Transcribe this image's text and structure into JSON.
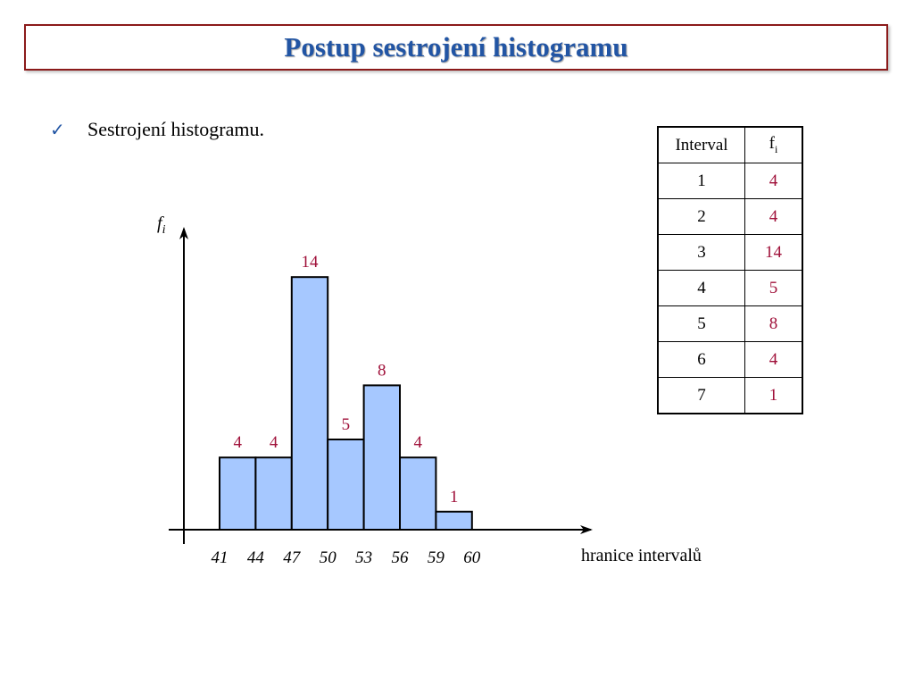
{
  "slide": {
    "title": "Postup sestrojení histogramu",
    "bullet": "Sestrojení histogramu."
  },
  "table": {
    "header_interval": "Interval",
    "header_f": "f",
    "header_f_sub": "i",
    "rows": [
      {
        "interval": "1",
        "f": "4"
      },
      {
        "interval": "2",
        "f": "4"
      },
      {
        "interval": "3",
        "f": "14"
      },
      {
        "interval": "4",
        "f": "5"
      },
      {
        "interval": "5",
        "f": "8"
      },
      {
        "interval": "6",
        "f": "4"
      },
      {
        "interval": "7",
        "f": "1"
      }
    ]
  },
  "colors": {
    "title": "#2255a4",
    "title_border": "#8b1a1a",
    "bar_fill": "#a6c8ff",
    "value_label": "#a0113a"
  },
  "chart_data": {
    "type": "bar",
    "ylabel": "f",
    "ylabel_sub": "i",
    "xlabel": "hranice intervalů",
    "bin_edges": [
      41,
      44,
      47,
      50,
      53,
      56,
      59,
      60
    ],
    "tick_labels": [
      "41",
      "44",
      "47",
      "50",
      "53",
      "56",
      "59",
      "60"
    ],
    "values": [
      4,
      4,
      14,
      5,
      8,
      4,
      1
    ],
    "data_labels": [
      "4",
      "4",
      "14",
      "5",
      "8",
      "4",
      "1"
    ],
    "grid": false
  }
}
